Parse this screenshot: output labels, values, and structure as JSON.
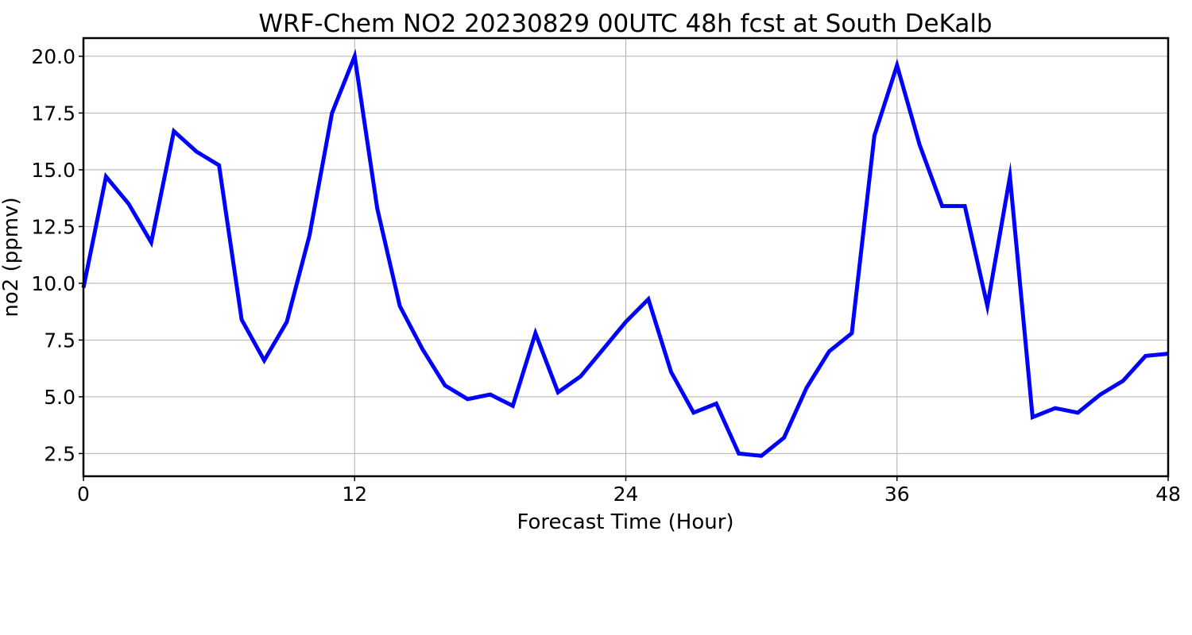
{
  "chart_data": {
    "type": "line",
    "title": "WRF-Chem NO2  20230829 00UTC 48h fcst at South DeKalb",
    "xlabel": "Forecast Time (Hour)",
    "ylabel": "no2  (ppmv)",
    "xlim": [
      0,
      48
    ],
    "ylim": [
      1.5,
      20.8
    ],
    "xticks": [
      0,
      12,
      24,
      36,
      48
    ],
    "xtick_labels": [
      "0",
      "12",
      "24",
      "36",
      "48"
    ],
    "yticks": [
      2.5,
      5.0,
      7.5,
      10.0,
      12.5,
      15.0,
      17.5,
      20.0
    ],
    "ytick_labels": [
      "2.5",
      "5.0",
      "7.5",
      "10.0",
      "12.5",
      "15.0",
      "17.5",
      "20.0"
    ],
    "grid": true,
    "series": [
      {
        "color": "#0000ff",
        "x": [
          0,
          1,
          2,
          3,
          4,
          5,
          6,
          7,
          8,
          9,
          10,
          11,
          12,
          13,
          14,
          15,
          16,
          17,
          18,
          19,
          20,
          21,
          22,
          23,
          24,
          25,
          26,
          27,
          28,
          29,
          30,
          31,
          32,
          33,
          34,
          35,
          36,
          37,
          38,
          39,
          40,
          41,
          42,
          43,
          44,
          45,
          46,
          47,
          48
        ],
        "values": [
          9.8,
          14.7,
          13.5,
          11.8,
          16.7,
          15.8,
          15.2,
          8.4,
          6.6,
          8.3,
          12.1,
          17.5,
          20.0,
          13.3,
          9.0,
          7.1,
          5.5,
          4.9,
          5.1,
          4.6,
          7.8,
          5.2,
          5.9,
          7.1,
          8.3,
          9.3,
          6.1,
          4.3,
          4.7,
          2.5,
          2.4,
          3.2,
          5.4,
          7.0,
          7.8,
          16.5,
          19.6,
          16.1,
          13.4,
          13.4,
          9.0,
          14.7,
          4.1,
          4.5,
          4.3,
          5.1,
          5.7,
          6.8,
          6.9
        ]
      }
    ]
  }
}
